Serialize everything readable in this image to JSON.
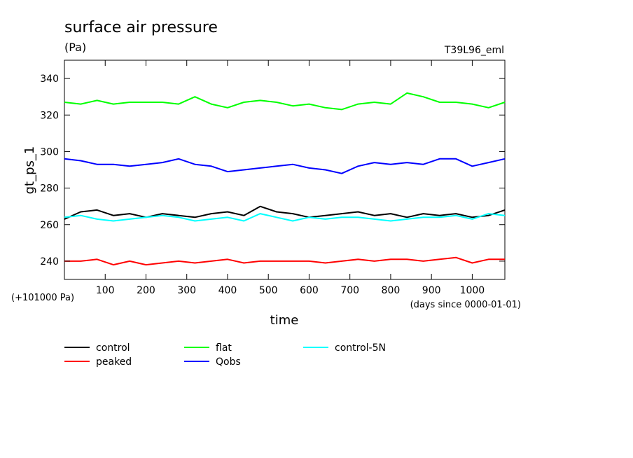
{
  "header": {
    "title": "surface air pressure",
    "units": "(Pa)",
    "run_label": "T39L96_eml",
    "offset_note": "(+101000 Pa)",
    "x_unit_note": "(days since 0000-01-01)"
  },
  "chart_data": {
    "type": "line",
    "title": "surface air pressure",
    "xlabel": "time",
    "ylabel": "gt_ps_1",
    "xlim": [
      0,
      1080
    ],
    "ylim": [
      230,
      350
    ],
    "xticks": [
      100,
      200,
      300,
      400,
      500,
      600,
      700,
      800,
      900,
      1000
    ],
    "yticks": [
      240,
      260,
      280,
      300,
      320,
      340
    ],
    "legend_position": "bottom",
    "series": [
      {
        "name": "control",
        "color": "#000000",
        "x": [
          0,
          40,
          80,
          120,
          160,
          200,
          240,
          280,
          320,
          360,
          400,
          440,
          480,
          520,
          560,
          600,
          640,
          680,
          720,
          760,
          800,
          840,
          880,
          920,
          960,
          1000,
          1040,
          1080
        ],
        "values": [
          263,
          267,
          268,
          265,
          266,
          264,
          266,
          265,
          264,
          266,
          267,
          265,
          270,
          267,
          266,
          264,
          265,
          266,
          267,
          265,
          266,
          264,
          266,
          265,
          266,
          264,
          265,
          268
        ]
      },
      {
        "name": "peaked",
        "color": "#ff0000",
        "x": [
          0,
          40,
          80,
          120,
          160,
          200,
          240,
          280,
          320,
          360,
          400,
          440,
          480,
          520,
          560,
          600,
          640,
          680,
          720,
          760,
          800,
          840,
          880,
          920,
          960,
          1000,
          1040,
          1080
        ],
        "values": [
          240,
          240,
          241,
          238,
          240,
          238,
          239,
          240,
          239,
          240,
          241,
          239,
          240,
          240,
          240,
          240,
          239,
          240,
          241,
          240,
          241,
          241,
          240,
          241,
          242,
          239,
          241,
          241
        ]
      },
      {
        "name": "flat",
        "color": "#00ff00",
        "x": [
          0,
          40,
          80,
          120,
          160,
          200,
          240,
          280,
          320,
          360,
          400,
          440,
          480,
          520,
          560,
          600,
          640,
          680,
          720,
          760,
          800,
          840,
          880,
          920,
          960,
          1000,
          1040,
          1080
        ],
        "values": [
          327,
          326,
          328,
          326,
          327,
          327,
          327,
          326,
          330,
          326,
          324,
          327,
          328,
          327,
          325,
          326,
          324,
          323,
          326,
          327,
          326,
          332,
          330,
          327,
          327,
          326,
          324,
          327
        ]
      },
      {
        "name": "Qobs",
        "color": "#0000ff",
        "x": [
          0,
          40,
          80,
          120,
          160,
          200,
          240,
          280,
          320,
          360,
          400,
          440,
          480,
          520,
          560,
          600,
          640,
          680,
          720,
          760,
          800,
          840,
          880,
          920,
          960,
          1000,
          1040,
          1080
        ],
        "values": [
          296,
          295,
          293,
          293,
          292,
          293,
          294,
          296,
          293,
          292,
          289,
          290,
          291,
          292,
          293,
          291,
          290,
          288,
          292,
          294,
          293,
          294,
          293,
          296,
          296,
          292,
          294,
          296
        ]
      },
      {
        "name": "control-5N",
        "color": "#00ffff",
        "x": [
          0,
          40,
          80,
          120,
          160,
          200,
          240,
          280,
          320,
          360,
          400,
          440,
          480,
          520,
          560,
          600,
          640,
          680,
          720,
          760,
          800,
          840,
          880,
          920,
          960,
          1000,
          1040,
          1080
        ],
        "values": [
          264,
          265,
          263,
          262,
          263,
          264,
          265,
          264,
          262,
          263,
          264,
          262,
          266,
          264,
          262,
          264,
          263,
          264,
          264,
          263,
          262,
          263,
          264,
          264,
          265,
          263,
          266,
          265
        ]
      }
    ]
  }
}
